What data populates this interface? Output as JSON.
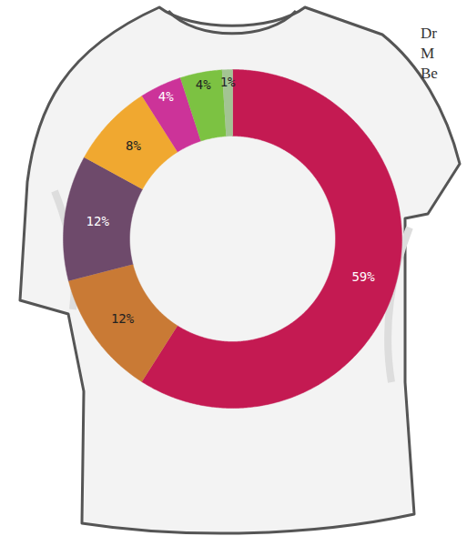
{
  "chart_data": {
    "type": "donut",
    "values": [
      59,
      12,
      12,
      8,
      4,
      4,
      1
    ],
    "value_labels": [
      "59%",
      "12%",
      "12%",
      "8%",
      "4%",
      "4%",
      "1%"
    ],
    "colors": [
      "#c41a52",
      "#c97a35",
      "#6e4a6b",
      "#f0a830",
      "#cc3399",
      "#7cc242",
      "#a3c493"
    ],
    "data_labels": true,
    "annotations": [
      "Dr",
      "M",
      "Be"
    ]
  }
}
